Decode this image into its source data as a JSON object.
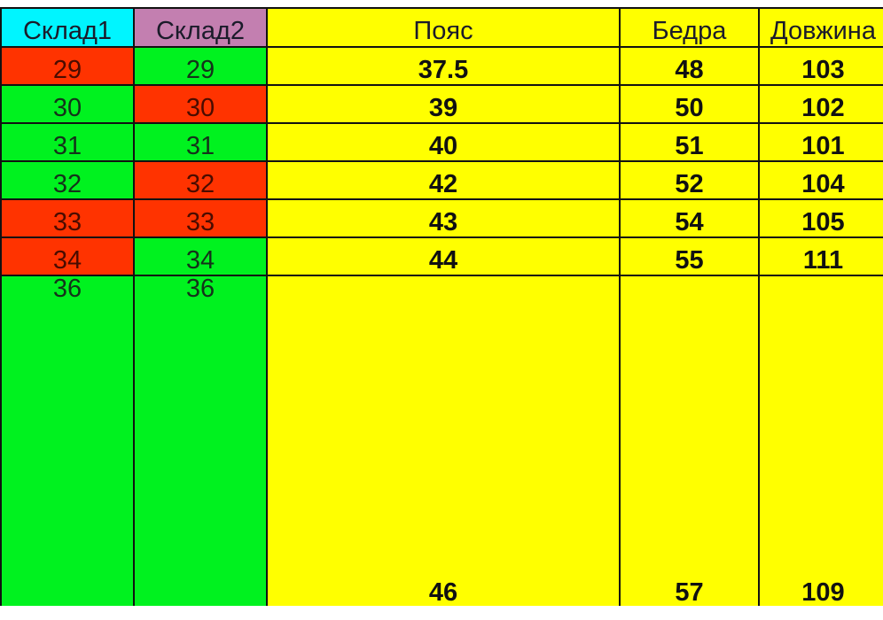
{
  "headers": [
    "Склад1",
    "Склад2",
    "Пояс",
    "Бедра",
    "Довжина"
  ],
  "rows": [
    {
      "sklad1": "29",
      "sklad1_status": "red",
      "sklad2": "29",
      "sklad2_status": "green",
      "poyas": "37.5",
      "bedra": "48",
      "dovzhyna": "103"
    },
    {
      "sklad1": "30",
      "sklad1_status": "green",
      "sklad2": "30",
      "sklad2_status": "red",
      "poyas": "39",
      "bedra": "50",
      "dovzhyna": "102"
    },
    {
      "sklad1": "31",
      "sklad1_status": "green",
      "sklad2": "31",
      "sklad2_status": "green",
      "poyas": "40",
      "bedra": "51",
      "dovzhyna": "101"
    },
    {
      "sklad1": "32",
      "sklad1_status": "green",
      "sklad2": "32",
      "sklad2_status": "red",
      "poyas": "42",
      "bedra": "52",
      "dovzhyna": "104"
    },
    {
      "sklad1": "33",
      "sklad1_status": "red",
      "sklad2": "33",
      "sklad2_status": "red",
      "poyas": "43",
      "bedra": "54",
      "dovzhyna": "105"
    },
    {
      "sklad1": "34",
      "sklad1_status": "red",
      "sklad2": "34",
      "sklad2_status": "green",
      "poyas": "44",
      "bedra": "55",
      "dovzhyna": "111"
    },
    {
      "sklad1": "36",
      "sklad1_status": "green",
      "sklad2": "36",
      "sklad2_status": "green",
      "poyas": "46",
      "bedra": "57",
      "dovzhyna": "109"
    }
  ],
  "colors": {
    "sklad1_header": "#00f5ff",
    "sklad2_header": "#c37fb0",
    "measure_columns": "#ffff00",
    "in_stock_green": "#00f21f",
    "out_of_stock_red": "#ff3300"
  }
}
